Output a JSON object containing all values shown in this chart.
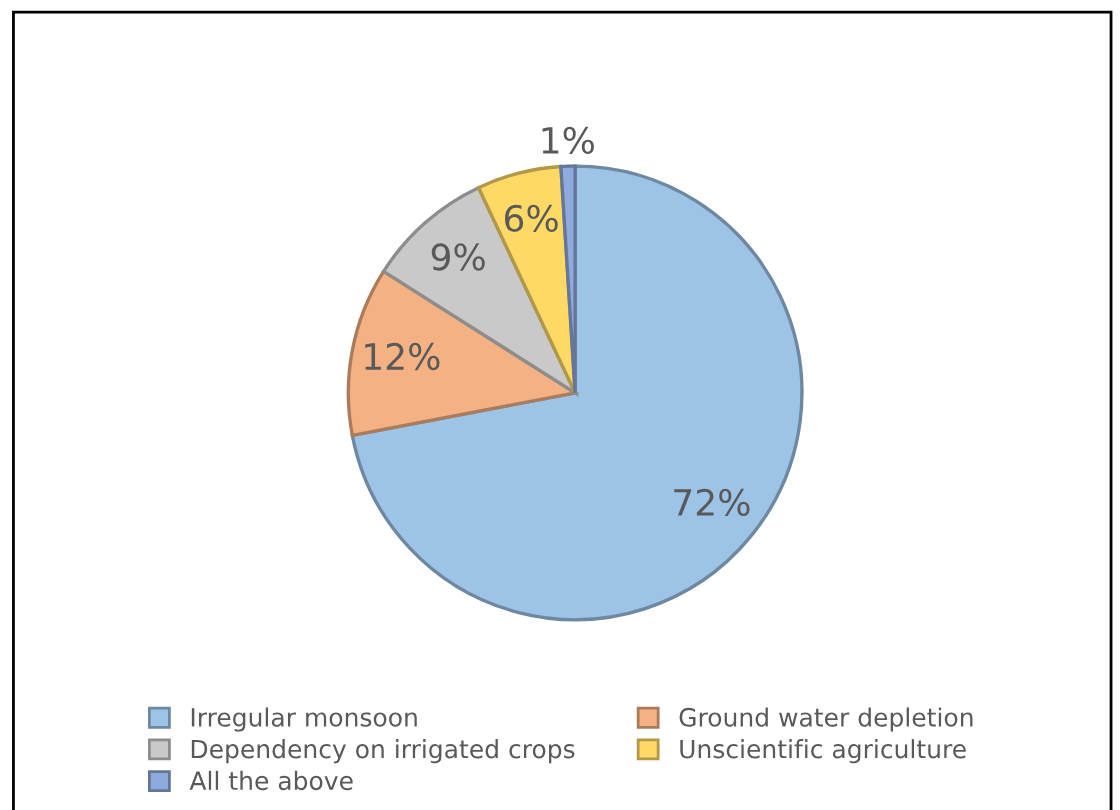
{
  "chart_data": {
    "type": "pie",
    "categories": [
      "Irregular monsoon",
      "Ground water depletion",
      "Dependency on irrigated crops",
      "Unscientific agriculture",
      "All the above"
    ],
    "values": [
      72,
      12,
      9,
      6,
      1
    ],
    "colors": [
      "#9dc3e6",
      "#f4b183",
      "#c9c9c9",
      "#ffd966",
      "#8faadc"
    ],
    "value_labels": [
      "72%",
      "12%",
      "9%",
      "6%",
      "1%"
    ],
    "legend": "bottom"
  }
}
